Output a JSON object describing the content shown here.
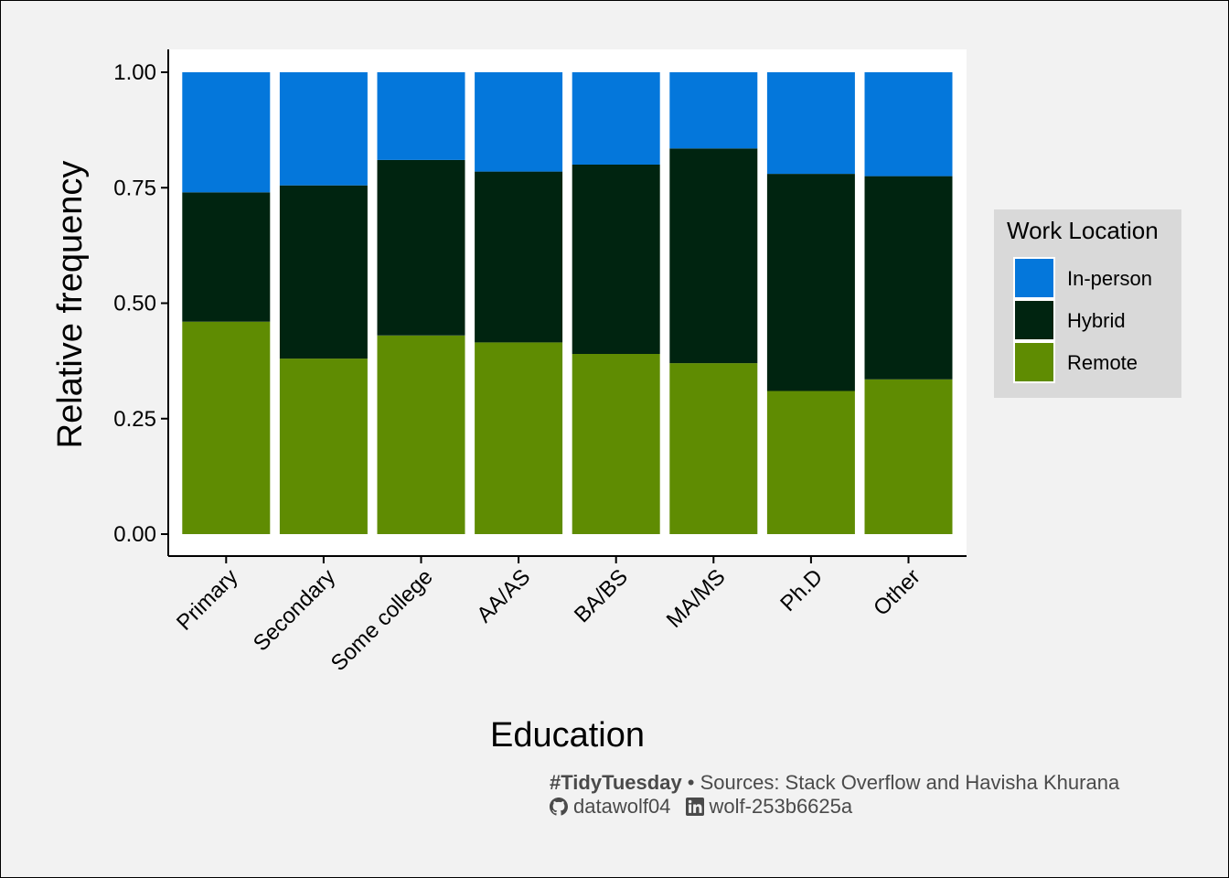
{
  "chart_data": {
    "type": "bar",
    "stacked": true,
    "xlabel": "Education",
    "ylabel": "Relative frequency",
    "ylim": [
      0,
      1
    ],
    "yticks": [
      "0.00",
      "0.25",
      "0.50",
      "0.75",
      "1.00"
    ],
    "ytick_values": [
      0,
      0.25,
      0.5,
      0.75,
      1.0
    ],
    "categories": [
      "Primary",
      "Secondary",
      "Some college",
      "AA/AS",
      "BA/BS",
      "MA/MS",
      "Ph.D",
      "Other"
    ],
    "series": [
      {
        "name": "Remote",
        "color": "#5f8c02",
        "values": [
          0.46,
          0.38,
          0.43,
          0.415,
          0.39,
          0.37,
          0.31,
          0.335
        ]
      },
      {
        "name": "Hybrid",
        "color": "#002410",
        "values": [
          0.28,
          0.375,
          0.38,
          0.37,
          0.41,
          0.465,
          0.47,
          0.44
        ]
      },
      {
        "name": "In-person",
        "color": "#0477db",
        "values": [
          0.26,
          0.245,
          0.19,
          0.215,
          0.2,
          0.165,
          0.22,
          0.225
        ]
      }
    ],
    "legend": {
      "title": "Work Location",
      "position": "right",
      "entries": [
        "In-person",
        "Hybrid",
        "Remote"
      ]
    },
    "grid": false
  },
  "caption": {
    "tag": "#TidyTuesday",
    "separator": " • ",
    "sources": "Sources: Stack Overflow and Havisha Khurana",
    "github_icon": "github-icon",
    "github_user": "datawolf04",
    "linkedin_icon": "linkedin-icon",
    "linkedin_user": "wolf-253b6625a"
  },
  "colors": {
    "background": "#f2f2f2",
    "panel": "#ffffff",
    "legend_bg": "#d9d9d9"
  }
}
